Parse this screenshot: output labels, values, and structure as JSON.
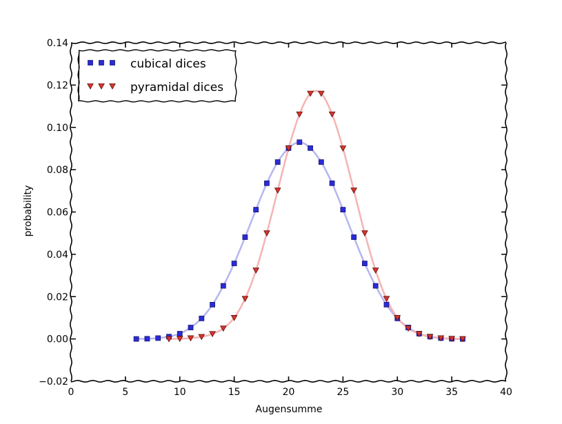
{
  "chart_data": {
    "type": "scatter",
    "xlabel": "Augensumme",
    "ylabel": "probability",
    "xlim": [
      0,
      40
    ],
    "ylim": [
      -0.02,
      0.14
    ],
    "xticks": [
      0,
      5,
      10,
      15,
      20,
      25,
      30,
      35,
      40
    ],
    "yticks": [
      -0.02,
      0.0,
      0.02,
      0.04,
      0.06,
      0.08,
      0.1,
      0.12,
      0.14
    ],
    "ytick_labels": [
      "−0.02",
      "0.00",
      "0.02",
      "0.04",
      "0.06",
      "0.08",
      "0.10",
      "0.12",
      "0.14"
    ],
    "grid": false,
    "legend_position": "top-left",
    "series": [
      {
        "name": "cubical dices",
        "marker": "square",
        "color": "#2b2bd9",
        "line_color": "#b7b7f0",
        "x": [
          6,
          7,
          8,
          9,
          10,
          11,
          12,
          13,
          14,
          15,
          16,
          17,
          18,
          19,
          20,
          21,
          22,
          23,
          24,
          25,
          26,
          27,
          28,
          29,
          30,
          31,
          32,
          33,
          34,
          35,
          36
        ],
        "y": [
          0.0,
          0.0001,
          0.0004,
          0.0011,
          0.0025,
          0.0054,
          0.0097,
          0.0162,
          0.0251,
          0.0357,
          0.0481,
          0.0611,
          0.0736,
          0.0836,
          0.0902,
          0.093,
          0.0902,
          0.0836,
          0.0736,
          0.0611,
          0.0481,
          0.0357,
          0.0251,
          0.0162,
          0.0097,
          0.0054,
          0.0025,
          0.0011,
          0.0004,
          0.0001,
          0.0
        ]
      },
      {
        "name": "pyramidal dices",
        "marker": "triangle-down",
        "color": "#d9342b",
        "line_color": "#f5b5b5",
        "x": [
          9,
          10,
          11,
          12,
          13,
          14,
          15,
          16,
          17,
          18,
          19,
          20,
          21,
          22,
          23,
          24,
          25,
          26,
          27,
          28,
          29,
          30,
          31,
          32,
          33,
          34,
          35,
          36
        ],
        "y": [
          0.0,
          0.0001,
          0.0004,
          0.001,
          0.0024,
          0.005,
          0.01,
          0.019,
          0.0324,
          0.05,
          0.0702,
          0.0901,
          0.1062,
          0.116,
          0.116,
          0.1062,
          0.0901,
          0.0702,
          0.05,
          0.0324,
          0.019,
          0.01,
          0.005,
          0.0024,
          0.001,
          0.0004,
          0.0001,
          0.0
        ]
      }
    ]
  }
}
